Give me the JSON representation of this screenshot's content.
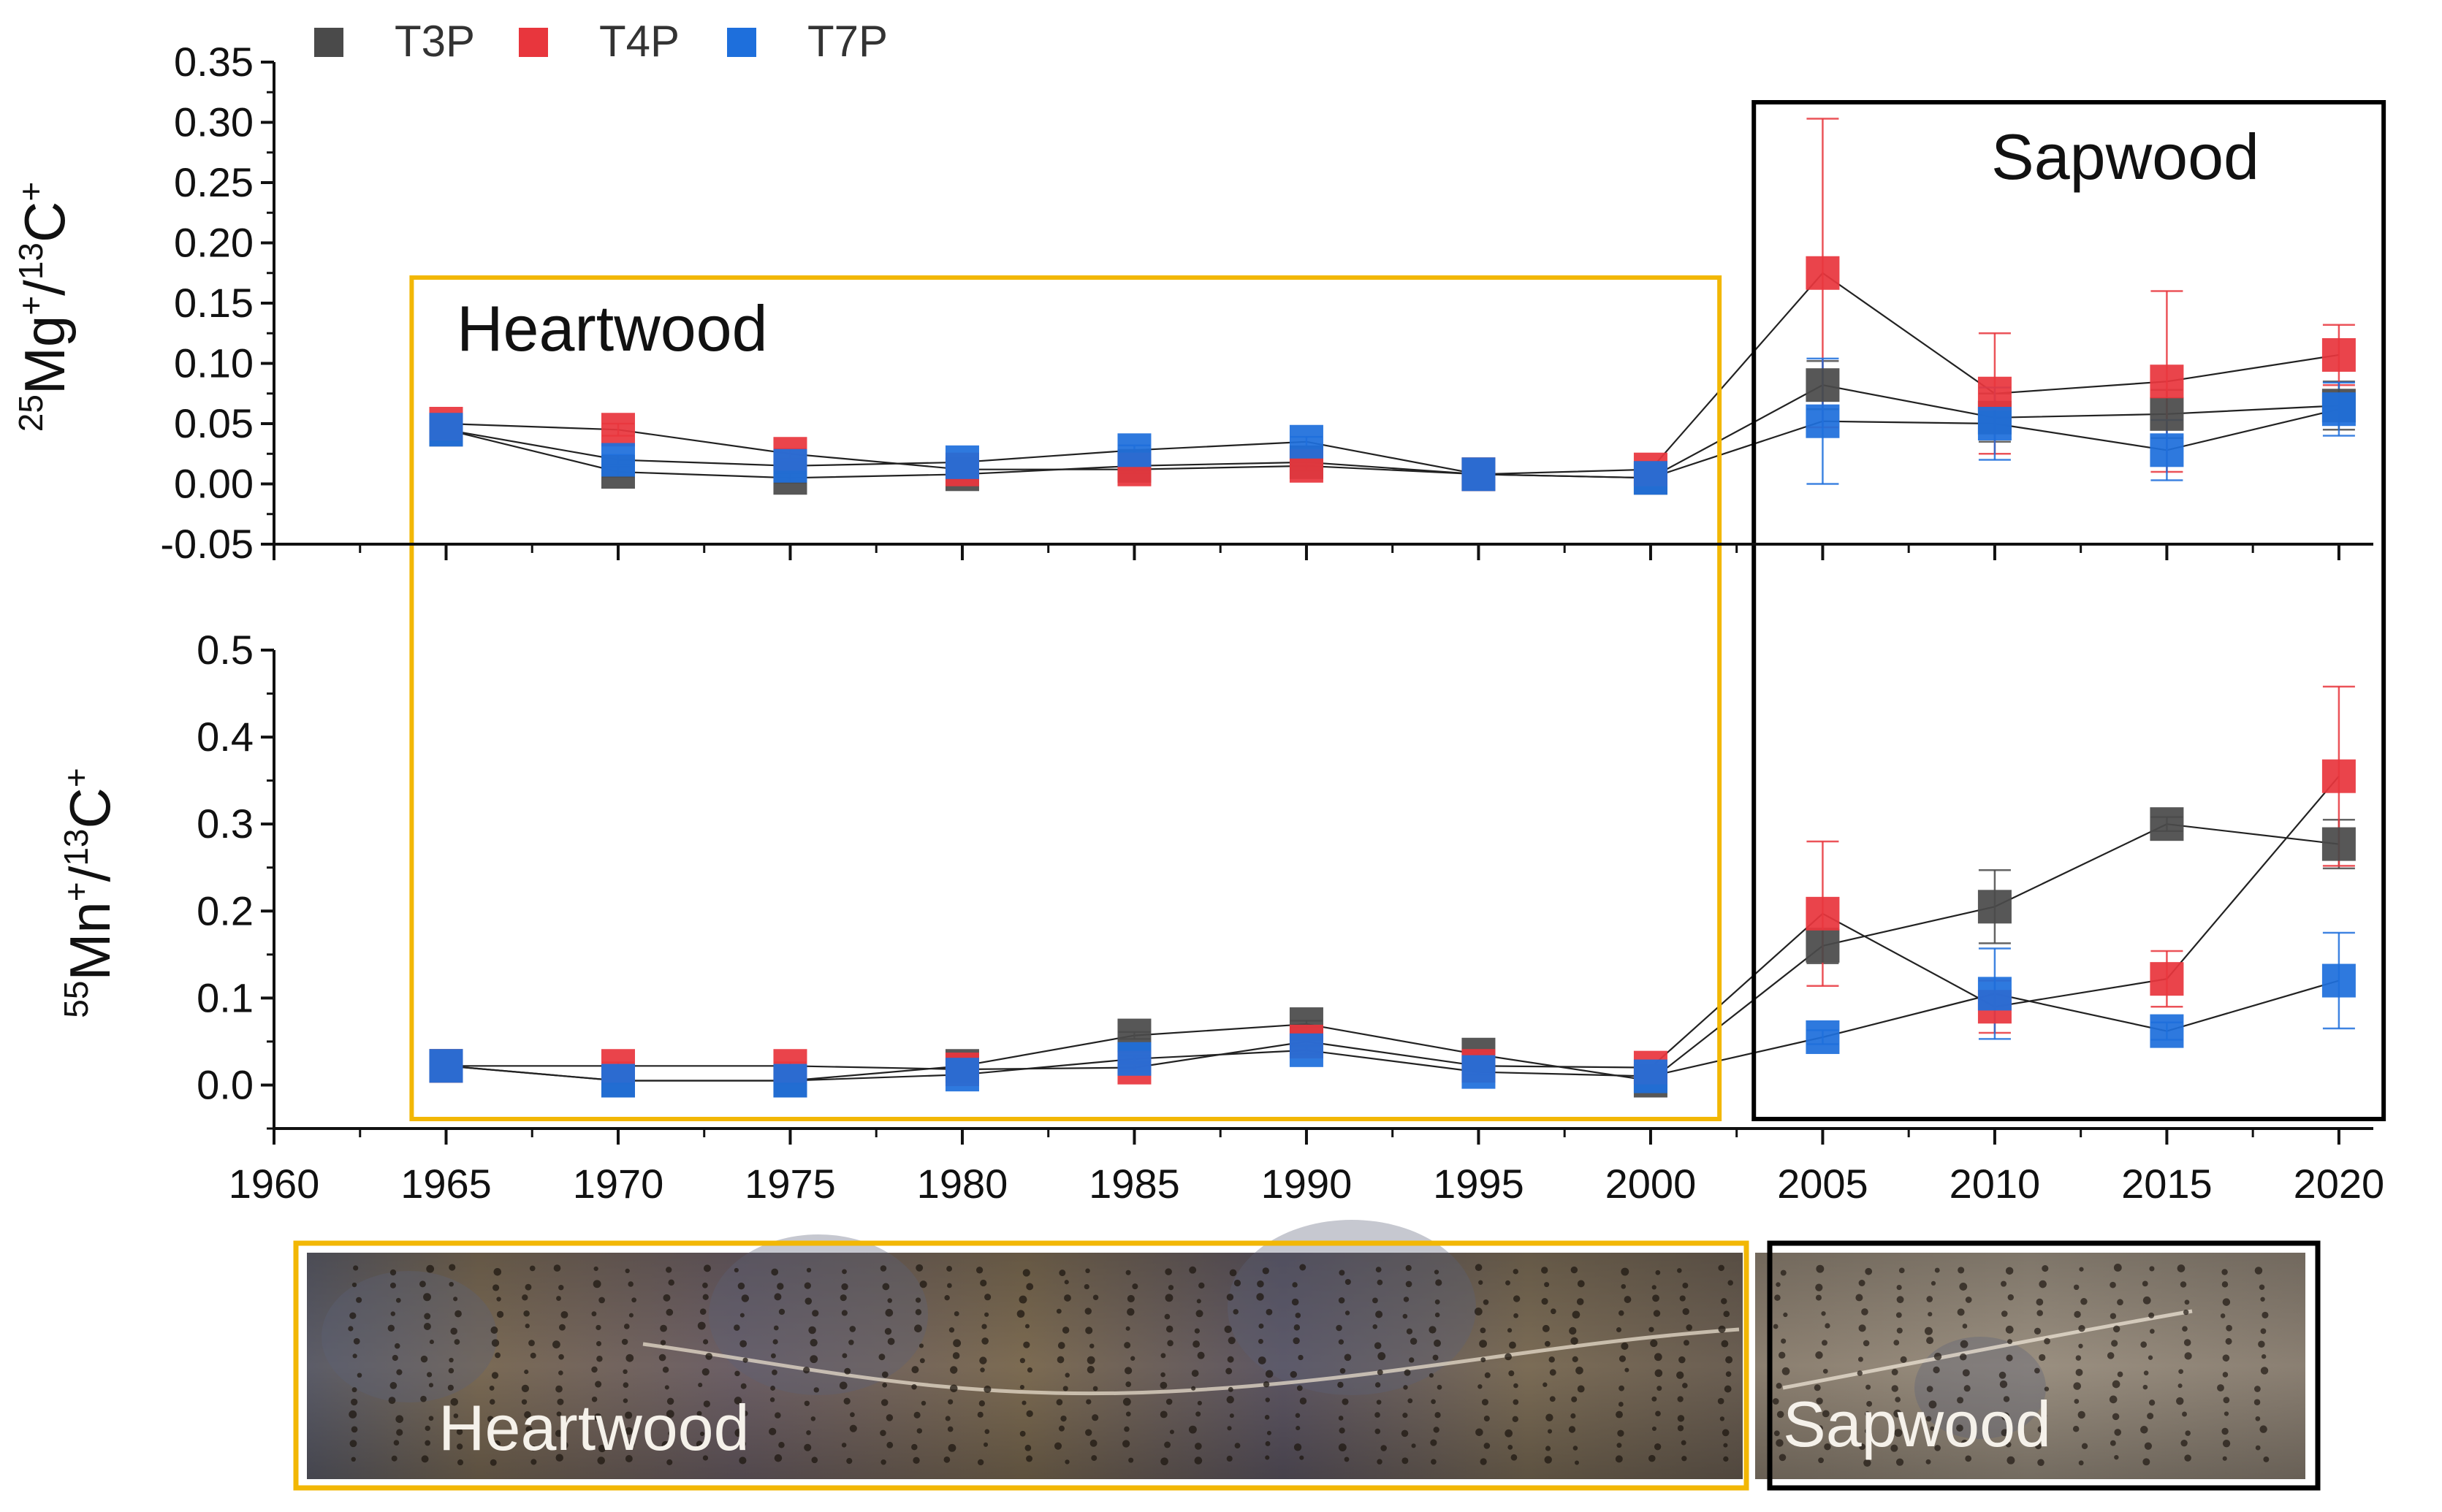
{
  "chart_data": {
    "type": "scatter",
    "x_axis": {
      "ticks": [
        "1960",
        "1965",
        "1970",
        "1975",
        "1980",
        "1985",
        "1990",
        "1995",
        "2000",
        "2005",
        "2010",
        "2015",
        "2020"
      ],
      "range": [
        1960,
        2021
      ]
    },
    "legend": {
      "placement": "top-left",
      "entries": [
        {
          "name": "T3P",
          "color": "#4a4a4a"
        },
        {
          "name": "T4P",
          "color": "#e8363d"
        },
        {
          "name": "T7P",
          "color": "#1e6fdc"
        }
      ]
    },
    "regions": {
      "heartwood": {
        "label": "Heartwood",
        "x_range": [
          1964,
          2002
        ],
        "color": "#f2b705"
      },
      "sapwood": {
        "label": "Sapwood",
        "x_range": [
          2003,
          2021.3
        ],
        "color": "#000000"
      }
    },
    "panels": [
      {
        "name": "mg",
        "ylabel_parts": [
          "25",
          "Mg",
          "+",
          "/",
          "13",
          "C",
          "+"
        ],
        "ylim": [
          -0.05,
          0.35
        ],
        "yticks": [
          "0.35",
          "0.30",
          "0.25",
          "0.20",
          "0.15",
          "0.10",
          "0.05",
          "0.00",
          "-0.05"
        ],
        "x": [
          1965,
          1970,
          1975,
          1980,
          1985,
          1990,
          1995,
          2000,
          2005,
          2010,
          2015,
          2020
        ],
        "series": [
          {
            "name": "T3P",
            "values": [
              0.045,
              0.01,
              0.005,
              0.008,
              0.015,
              0.018,
              0.008,
              0.005,
              0.082,
              0.055,
              0.058,
              0.065
            ],
            "errors": [
              0.004,
              0.004,
              0.004,
              0.004,
              0.004,
              0.004,
              0.003,
              0.003,
              0.02,
              0.02,
              0.02,
              0.02
            ]
          },
          {
            "name": "T4P",
            "values": [
              0.05,
              0.045,
              0.025,
              0.012,
              0.012,
              0.015,
              0.008,
              0.012,
              0.175,
              0.075,
              0.085,
              0.107
            ],
            "errors": [
              0.004,
              0.005,
              0.004,
              0.003,
              0.003,
              0.004,
              0.003,
              0.004,
              0.128,
              0.05,
              0.075,
              0.025
            ]
          },
          {
            "name": "T7P",
            "values": [
              0.045,
              0.02,
              0.015,
              0.018,
              0.028,
              0.035,
              0.008,
              0.005,
              0.052,
              0.05,
              0.028,
              0.062
            ],
            "errors": [
              0.004,
              0.004,
              0.004,
              0.004,
              0.004,
              0.004,
              0.003,
              0.003,
              0.052,
              0.03,
              0.025,
              0.022
            ]
          }
        ]
      },
      {
        "name": "mn",
        "ylabel_parts": [
          "55",
          "Mn",
          "+",
          "/",
          "13",
          "C",
          "+"
        ],
        "ylim": [
          -0.05,
          0.5
        ],
        "yticks": [
          "0.5",
          "0.4",
          "0.3",
          "0.2",
          "0.1",
          "0.0"
        ],
        "x": [
          1965,
          1970,
          1975,
          1980,
          1985,
          1990,
          1995,
          2000,
          2005,
          2010,
          2015,
          2020
        ],
        "series": [
          {
            "name": "T3P",
            "values": [
              0.022,
              0.005,
              0.005,
              0.022,
              0.057,
              0.07,
              0.035,
              0.005,
              0.16,
              0.205,
              0.3,
              0.277
            ],
            "errors": [
              0.003,
              0.003,
              0.003,
              0.003,
              0.004,
              0.004,
              0.004,
              0.003,
              0.02,
              0.042,
              0.008,
              0.028
            ]
          },
          {
            "name": "T4P",
            "values": [
              0.022,
              0.022,
              0.022,
              0.018,
              0.02,
              0.05,
              0.022,
              0.02,
              0.197,
              0.09,
              0.122,
              0.355
            ],
            "errors": [
              0.003,
              0.004,
              0.004,
              0.003,
              0.004,
              0.004,
              0.004,
              0.003,
              0.083,
              0.03,
              0.032,
              0.103
            ]
          },
          {
            "name": "T7P",
            "values": [
              0.022,
              0.005,
              0.005,
              0.012,
              0.03,
              0.04,
              0.015,
              0.01,
              0.055,
              0.105,
              0.062,
              0.12
            ],
            "errors": [
              0.003,
              0.003,
              0.003,
              0.003,
              0.004,
              0.004,
              0.003,
              0.003,
              0.008,
              0.052,
              0.01,
              0.055
            ]
          }
        ]
      }
    ],
    "photo": {
      "labels": [
        "Heartwood",
        "Sapwood"
      ]
    }
  }
}
